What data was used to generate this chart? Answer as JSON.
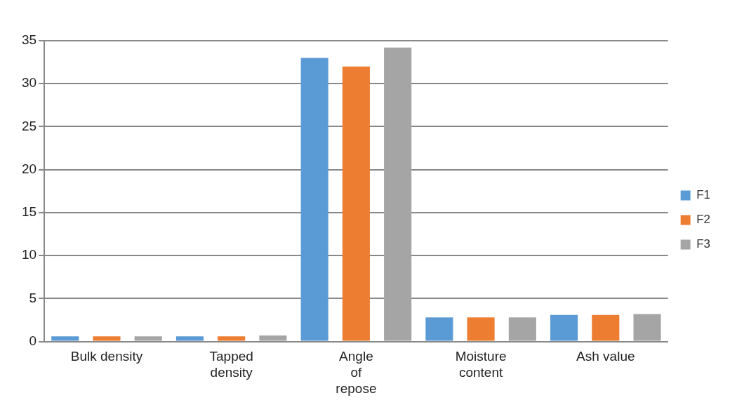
{
  "chart_data": {
    "type": "bar",
    "categories": [
      "Bulk density",
      "Tapped density",
      "Angle of repose",
      "Moisture content",
      "Ash value"
    ],
    "series": [
      {
        "name": "F1",
        "color": "#5b9bd5",
        "values": [
          0.6,
          0.6,
          33,
          2.8,
          3.1
        ]
      },
      {
        "name": "F2",
        "color": "#ed7d31",
        "values": [
          0.6,
          0.6,
          32,
          2.8,
          3.1
        ]
      },
      {
        "name": "F3",
        "color": "#a5a5a5",
        "values": [
          0.6,
          0.7,
          34.2,
          2.8,
          3.2
        ]
      }
    ],
    "ylim": [
      0,
      35
    ],
    "yticks": [
      0,
      5,
      10,
      15,
      20,
      25,
      30,
      35
    ],
    "grid": "y",
    "legend": "right"
  }
}
